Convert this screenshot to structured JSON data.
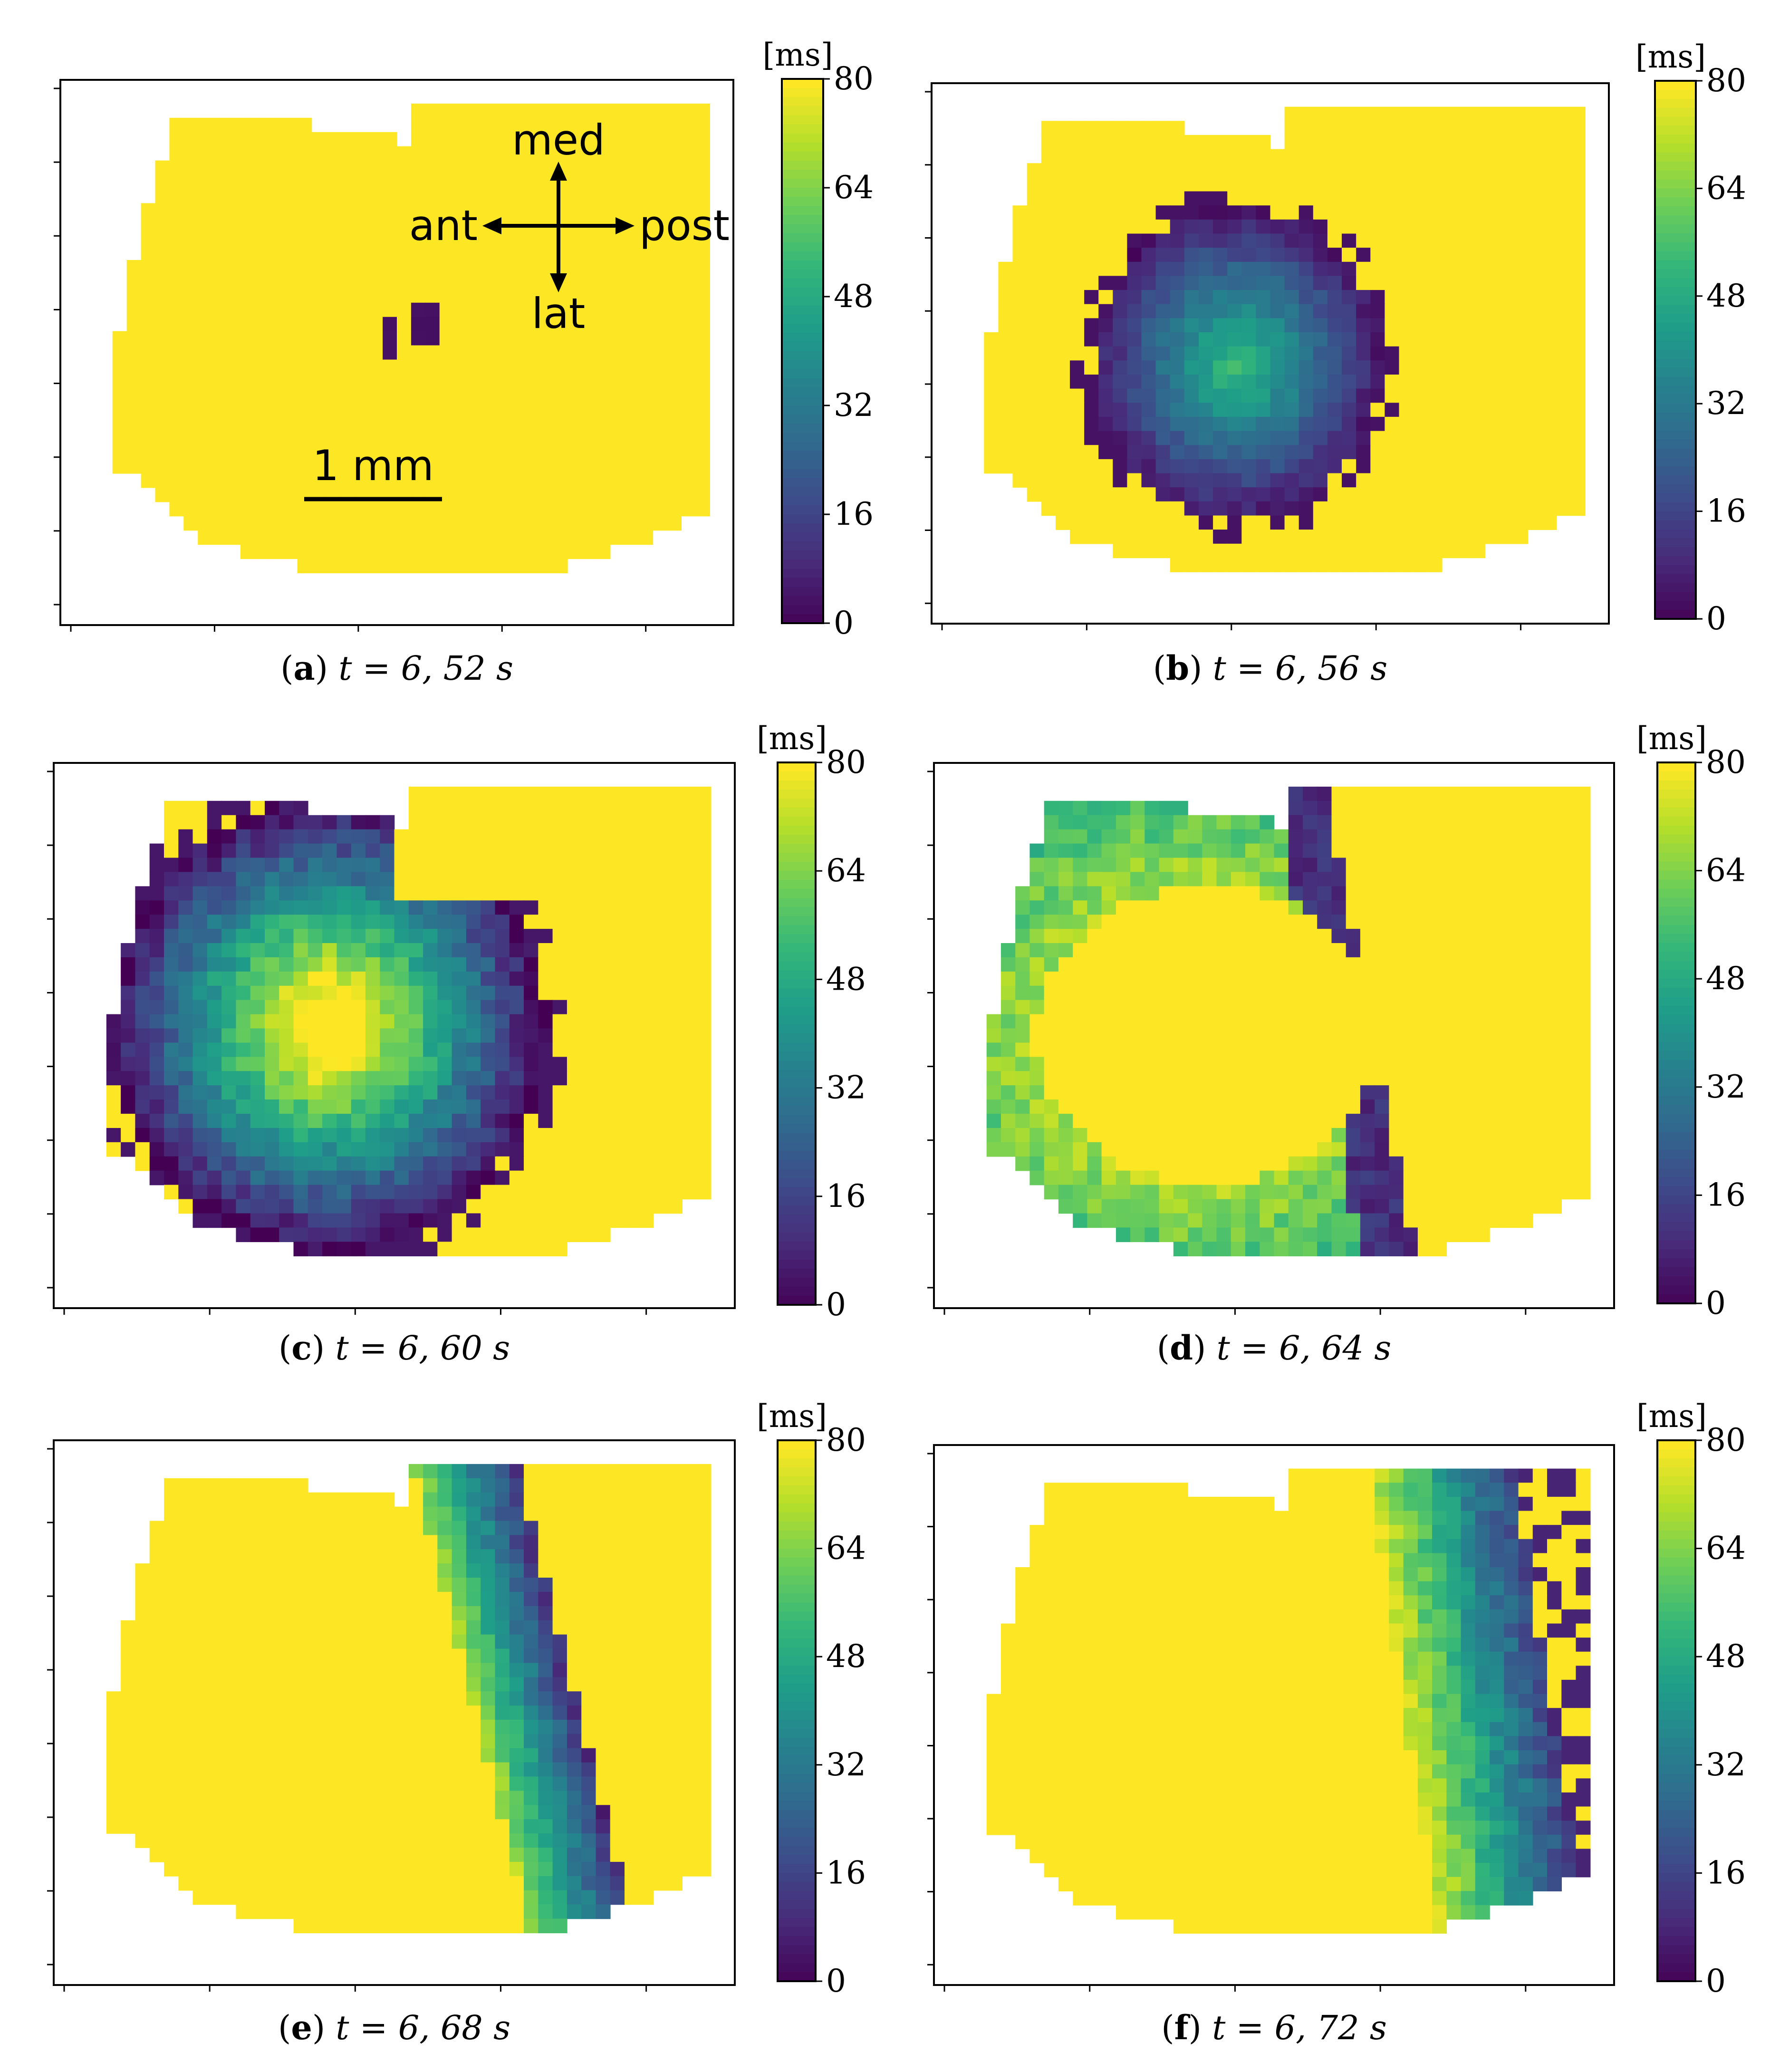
{
  "chart_data": [
    {
      "type": "heatmap",
      "panel_letter": "a",
      "caption_time": "t = 6, 52 s",
      "colorbar": {
        "label": "[ms]",
        "min": 0,
        "max": 80,
        "ticks": [
          "0",
          "16",
          "32",
          "48",
          "64",
          "80"
        ],
        "colormap": "viridis"
      },
      "activation_region": {
        "shape": "small-cluster",
        "min_ms": 0,
        "max_ms": 4
      },
      "annotations": {
        "med": "med",
        "lat": "lat",
        "ant": "ant",
        "post": "post",
        "scale_bar": "1 mm"
      }
    },
    {
      "type": "heatmap",
      "panel_letter": "b",
      "caption_time": "t = 6, 56 s",
      "colorbar": {
        "label": "[ms]",
        "min": 0,
        "max": 80,
        "ticks": [
          "0",
          "16",
          "32",
          "48",
          "64",
          "80"
        ],
        "colormap": "viridis"
      },
      "activation_region": {
        "shape": "blob",
        "min_ms": 0,
        "max_ms": 42
      }
    },
    {
      "type": "heatmap",
      "panel_letter": "c",
      "caption_time": "t = 6, 60 s",
      "colorbar": {
        "label": "[ms]",
        "min": 0,
        "max": 80,
        "ticks": [
          "0",
          "16",
          "32",
          "48",
          "64",
          "80"
        ],
        "colormap": "viridis"
      },
      "activation_region": {
        "shape": "large-blob",
        "min_ms": 0,
        "max_ms": 78
      }
    },
    {
      "type": "heatmap",
      "panel_letter": "d",
      "caption_time": "t = 6, 64 s",
      "colorbar": {
        "label": "[ms]",
        "min": 0,
        "max": 80,
        "ticks": [
          "0",
          "16",
          "32",
          "48",
          "64",
          "80"
        ],
        "colormap": "viridis"
      },
      "activation_region": {
        "shape": "ring",
        "min_ms": 0,
        "max_ms": 70
      }
    },
    {
      "type": "heatmap",
      "panel_letter": "e",
      "caption_time": "t = 6, 68 s",
      "colorbar": {
        "label": "[ms]",
        "min": 0,
        "max": 80,
        "ticks": [
          "0",
          "16",
          "32",
          "48",
          "64",
          "80"
        ],
        "colormap": "viridis"
      },
      "activation_region": {
        "shape": "right-band",
        "min_ms": 0,
        "max_ms": 70
      }
    },
    {
      "type": "heatmap",
      "panel_letter": "f",
      "caption_time": "t = 6, 72 s",
      "colorbar": {
        "label": "[ms]",
        "min": 0,
        "max": 80,
        "ticks": [
          "0",
          "16",
          "32",
          "48",
          "64",
          "80"
        ],
        "colormap": "viridis"
      },
      "activation_region": {
        "shape": "right-edge-band",
        "min_ms": 0,
        "max_ms": 70
      }
    }
  ],
  "colors": {
    "viridis": [
      "#440154",
      "#482878",
      "#3e4989",
      "#31688e",
      "#26828e",
      "#1f9e89",
      "#35b779",
      "#6ece58",
      "#b5de2b",
      "#fde725"
    ],
    "background": "#ffffff",
    "axes": "#000000"
  }
}
